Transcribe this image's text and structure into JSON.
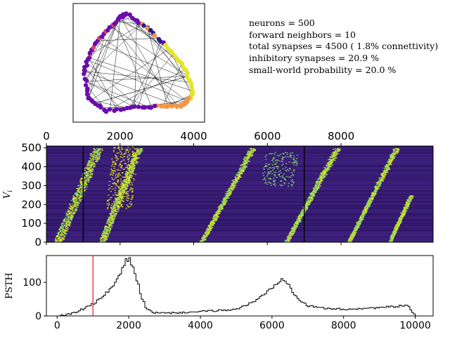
{
  "info": {
    "lines": [
      "neurons = 500",
      "forward neighbors = 10",
      "total synapses = 4500 ( 1.8% connettivity)",
      "inhibitory synapses = 20.9 %",
      "small-world probability = 20.0 %"
    ]
  },
  "colors": {
    "raster_background": "#3b1f7a",
    "raster_dark": "#2f1562",
    "raster_spike": "#7fd36b",
    "raster_spike_bright": "#e5e419",
    "marker_line_black": "#000000",
    "psth_marker_red": "#e31a1c",
    "psth_line": "#000000",
    "network_node_main": "#6a0dad",
    "network_node_warm": "#f89540",
    "network_node_hot": "#e5e52a",
    "network_node_pink": "#d6456b"
  },
  "chart_data": [
    {
      "type": "network",
      "nodes": 500,
      "forward_neighbors": 10
    },
    {
      "type": "heatmap",
      "ylabel": "V_i",
      "xlim": [
        0,
        10500
      ],
      "ylim": [
        0,
        510
      ],
      "x_ticks": [
        0,
        2000,
        4000,
        6000,
        8000
      ],
      "x_tick_labels": [
        "0",
        "2000",
        "4000",
        "6000",
        "8000"
      ],
      "y_ticks": [
        0,
        100,
        200,
        300,
        400,
        500
      ],
      "y_tick_labels": [
        "0",
        "100",
        "200",
        "300",
        "400",
        "500"
      ],
      "vertical_markers": [
        1000,
        7000
      ],
      "x_axis_position": "top"
    },
    {
      "type": "line",
      "ylabel": "PSTH",
      "xlim": [
        -300,
        10500
      ],
      "ylim": [
        0,
        180
      ],
      "x_ticks": [
        0,
        2000,
        4000,
        6000,
        8000,
        10000
      ],
      "x_tick_labels": [
        "0",
        "2000",
        "4000",
        "6000",
        "8000",
        "10000"
      ],
      "y_ticks": [
        0,
        100
      ],
      "y_tick_labels": [
        "0",
        "100"
      ],
      "vertical_marker": 1000,
      "x": [
        0,
        250,
        500,
        750,
        1000,
        1250,
        1500,
        1650,
        1800,
        1900,
        2000,
        2100,
        2200,
        2350,
        2500,
        2700,
        3000,
        3500,
        4000,
        4500,
        5000,
        5300,
        5600,
        5800,
        6000,
        6200,
        6300,
        6450,
        6600,
        6800,
        7000,
        7300,
        7600,
        8000,
        8500,
        9000,
        9500,
        9800,
        10000
      ],
      "y": [
        0,
        3,
        10,
        22,
        35,
        55,
        80,
        105,
        130,
        160,
        170,
        155,
        120,
        60,
        20,
        10,
        8,
        10,
        13,
        16,
        20,
        32,
        50,
        65,
        85,
        105,
        112,
        100,
        70,
        45,
        30,
        25,
        22,
        20,
        22,
        25,
        28,
        32,
        0
      ]
    }
  ]
}
